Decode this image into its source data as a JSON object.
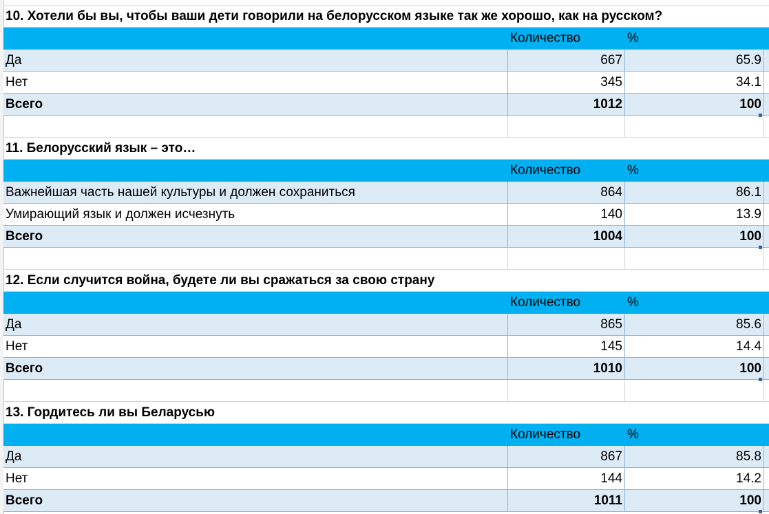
{
  "header_labels": {
    "count": "Количество",
    "percent": "%"
  },
  "sections": [
    {
      "title": "10. Хотели бы вы, чтобы ваши дети говорили на белорусском языке так же хорошо, как на русском?",
      "rows": [
        {
          "label": "Да",
          "count": "667",
          "percent": "65.9"
        },
        {
          "label": "Нет",
          "count": "345",
          "percent": "34.1"
        }
      ],
      "total": {
        "label": "Всего",
        "count": "1012",
        "percent": "100"
      }
    },
    {
      "title": "11.  Белорусский язык – это…",
      "rows": [
        {
          "label": "Важнейшая часть нашей культуры и должен сохраниться",
          "count": "864",
          "percent": "86.1"
        },
        {
          "label": "Умирающий язык и должен исчезнуть",
          "count": "140",
          "percent": "13.9"
        }
      ],
      "total": {
        "label": "Всего",
        "count": "1004",
        "percent": "100"
      }
    },
    {
      "title": "12. Если случится война, будете ли вы сражаться за свою страну",
      "rows": [
        {
          "label": "Да",
          "count": "865",
          "percent": "85.6"
        },
        {
          "label": "Нет",
          "count": "145",
          "percent": "14.4"
        }
      ],
      "total": {
        "label": "Всего",
        "count": "1010",
        "percent": "100"
      }
    },
    {
      "title": "13. Гордитесь ли вы Беларусью",
      "rows": [
        {
          "label": "Да",
          "count": "867",
          "percent": "85.8"
        },
        {
          "label": "Нет",
          "count": "144",
          "percent": "14.2"
        }
      ],
      "total": {
        "label": "Всего",
        "count": "1011",
        "percent": "100"
      }
    }
  ],
  "colors": {
    "header_fill": "#00b0f0",
    "band_fill": "#ddebf7",
    "border": "#8eb4da"
  }
}
